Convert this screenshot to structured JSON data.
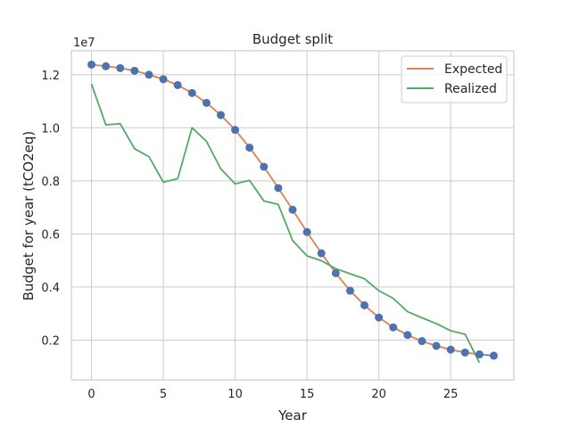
{
  "chart_data": {
    "type": "line",
    "title": "Budget split",
    "xlabel": "Year",
    "ylabel": "Budget for year (tCO2eq)",
    "offset_label": "1e7",
    "xlim": [
      -1.4,
      29.4
    ],
    "ylim": [
      0.05,
      1.29
    ],
    "xticks": [
      0,
      5,
      10,
      15,
      20,
      25
    ],
    "xtick_labels": [
      "0",
      "5",
      "10",
      "15",
      "20",
      "25"
    ],
    "yticks": [
      0.2,
      0.4,
      0.6,
      0.8,
      1.0,
      1.2
    ],
    "ytick_labels": [
      "0.2",
      "0.4",
      "0.6",
      "0.8",
      "1.0",
      "1.2"
    ],
    "grid": true,
    "legend_position": "upper-right",
    "points": {
      "x": [
        0,
        1,
        2,
        3,
        4,
        5,
        6,
        7,
        8,
        9,
        10,
        11,
        12,
        13,
        14,
        15,
        16,
        17,
        18,
        19,
        20,
        21,
        22,
        23,
        24,
        25,
        26,
        27,
        28
      ],
      "y": [
        1.238,
        1.232,
        1.225,
        1.215,
        1.2,
        1.183,
        1.161,
        1.131,
        1.094,
        1.048,
        0.992,
        0.925,
        0.853,
        0.773,
        0.691,
        0.607,
        0.527,
        0.452,
        0.386,
        0.331,
        0.285,
        0.248,
        0.219,
        0.196,
        0.178,
        0.164,
        0.153,
        0.146,
        0.141
      ],
      "color": "#4c72b0"
    },
    "series": [
      {
        "name": "Expected",
        "color": "#dd8452",
        "x": [
          0,
          1,
          2,
          3,
          4,
          5,
          6,
          7,
          8,
          9,
          10,
          11,
          12,
          13,
          14,
          15,
          16,
          17,
          18,
          19,
          20,
          21,
          22,
          23,
          24,
          25,
          26,
          27
        ],
        "y": [
          1.238,
          1.232,
          1.225,
          1.215,
          1.2,
          1.183,
          1.161,
          1.131,
          1.094,
          1.048,
          0.992,
          0.925,
          0.853,
          0.773,
          0.691,
          0.607,
          0.527,
          0.452,
          0.386,
          0.331,
          0.285,
          0.248,
          0.219,
          0.196,
          0.178,
          0.164,
          0.153,
          0.146
        ]
      },
      {
        "name": "Realized",
        "color": "#55a868",
        "x": [
          0,
          1,
          2,
          3,
          4,
          5,
          6,
          7,
          8,
          9,
          10,
          11,
          12,
          13,
          14,
          15,
          16,
          17,
          18,
          19,
          20,
          21,
          22,
          23,
          24,
          25,
          26,
          27
        ],
        "y": [
          1.165,
          1.011,
          1.015,
          0.921,
          0.891,
          0.795,
          0.808,
          1.0,
          0.949,
          0.845,
          0.789,
          0.802,
          0.724,
          0.711,
          0.575,
          0.517,
          0.499,
          0.469,
          0.45,
          0.431,
          0.386,
          0.357,
          0.307,
          0.284,
          0.262,
          0.235,
          0.222,
          0.115
        ]
      }
    ]
  }
}
